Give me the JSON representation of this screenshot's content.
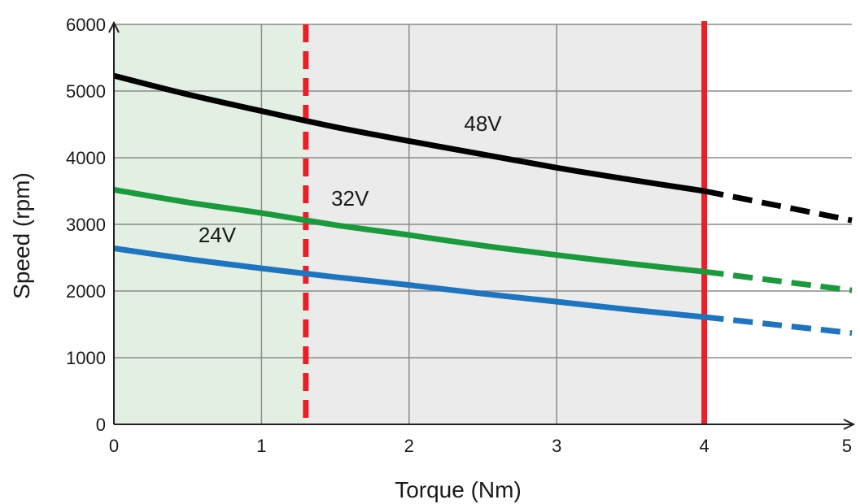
{
  "chart_data": {
    "type": "line",
    "title": "",
    "xlabel": "Torque (Nm)",
    "ylabel": "Speed (rpm)",
    "xlim": [
      0,
      5
    ],
    "ylim": [
      0,
      6000
    ],
    "x_ticks": [
      0,
      1,
      2,
      3,
      4,
      5
    ],
    "y_ticks": [
      0,
      1000,
      2000,
      3000,
      4000,
      5000,
      6000
    ],
    "x_tick_labels": [
      "0",
      "1",
      "2",
      "3",
      "4",
      "5"
    ],
    "y_tick_labels": [
      "0",
      "1000",
      "2000",
      "3000",
      "4000",
      "5000",
      "6000"
    ],
    "grid": true,
    "regions": [
      {
        "x_start": 0,
        "x_end": 1.3,
        "color": "#e2efe2"
      },
      {
        "x_start": 1.3,
        "x_end": 4,
        "color": "#ebebeb"
      }
    ],
    "limit_lines": [
      {
        "x": 1.3,
        "style": "dashed",
        "color": "#e8202a"
      },
      {
        "x": 4,
        "style": "solid",
        "color": "#e8202a"
      }
    ],
    "series": [
      {
        "name": "48V",
        "color": "#000000",
        "x": [
          0,
          0.5,
          1,
          1.5,
          2,
          2.5,
          3,
          3.5,
          4,
          4.5,
          5
        ],
        "y": [
          5230,
          4950,
          4700,
          4460,
          4250,
          4050,
          3850,
          3670,
          3500,
          3280,
          3060
        ],
        "solid_until_x": 4,
        "label": {
          "text": "48V",
          "x": 2.5,
          "y": 4400
        }
      },
      {
        "name": "32V",
        "color": "#1a9a3c",
        "x": [
          0,
          0.5,
          1,
          1.5,
          2,
          2.5,
          3,
          3.5,
          4,
          4.5,
          5
        ],
        "y": [
          3520,
          3330,
          3170,
          2990,
          2840,
          2680,
          2540,
          2410,
          2290,
          2150,
          2010
        ],
        "solid_until_x": 4,
        "label": {
          "text": "32V",
          "x": 1.6,
          "y": 3280
        }
      },
      {
        "name": "24V",
        "color": "#1e74bf",
        "x": [
          0,
          0.5,
          1,
          1.5,
          2,
          2.5,
          3,
          3.5,
          4,
          4.5,
          5
        ],
        "y": [
          2640,
          2480,
          2340,
          2210,
          2090,
          1960,
          1840,
          1720,
          1610,
          1490,
          1370
        ],
        "solid_until_x": 4,
        "label": {
          "text": "24V",
          "x": 0.7,
          "y": 2730
        }
      }
    ]
  }
}
